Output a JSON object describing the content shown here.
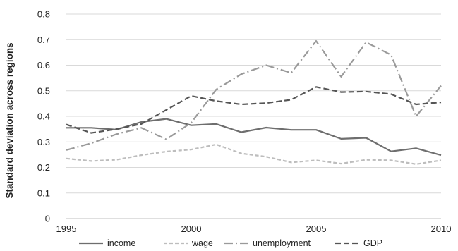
{
  "chart_data": {
    "type": "line",
    "title": "",
    "xlabel": "",
    "ylabel": "Standard deviation across regions",
    "x": [
      1995,
      1996,
      1997,
      1998,
      1999,
      2000,
      2001,
      2002,
      2003,
      2004,
      2005,
      2006,
      2007,
      2008,
      2009,
      2010
    ],
    "xticks": [
      "1995",
      "2000",
      "2005",
      "2010"
    ],
    "yticks": [
      "0",
      "0.1",
      "0.2",
      "0.3",
      "0.4",
      "0.5",
      "0.6",
      "0.7",
      "0.8"
    ],
    "xlim": [
      1995,
      2010
    ],
    "ylim": [
      0,
      0.8
    ],
    "grid": "horizontal",
    "legend_position": "bottom",
    "series": [
      {
        "name": "income",
        "color": "#6e6e6e",
        "dash": "solid",
        "values": [
          0.355,
          0.355,
          0.348,
          0.378,
          0.39,
          0.365,
          0.37,
          0.338,
          0.356,
          0.347,
          0.347,
          0.312,
          0.316,
          0.263,
          0.275,
          0.248
        ]
      },
      {
        "name": "wage",
        "color": "#bdbdbd",
        "dash": "dash",
        "values": [
          0.235,
          0.225,
          0.23,
          0.248,
          0.262,
          0.27,
          0.29,
          0.255,
          0.242,
          0.22,
          0.228,
          0.215,
          0.23,
          0.228,
          0.213,
          0.228
        ]
      },
      {
        "name": "unemployment",
        "color": "#9a9a9a",
        "dash": "dashdot",
        "values": [
          0.268,
          0.295,
          0.33,
          0.355,
          0.31,
          0.375,
          0.505,
          0.565,
          0.6,
          0.57,
          0.695,
          0.555,
          0.69,
          0.64,
          0.4,
          0.52
        ]
      },
      {
        "name": "GDP",
        "color": "#555555",
        "dash": "longdash",
        "values": [
          0.368,
          0.335,
          0.35,
          0.37,
          0.425,
          0.48,
          0.46,
          0.447,
          0.452,
          0.465,
          0.515,
          0.495,
          0.497,
          0.487,
          0.447,
          0.455
        ]
      }
    ]
  }
}
